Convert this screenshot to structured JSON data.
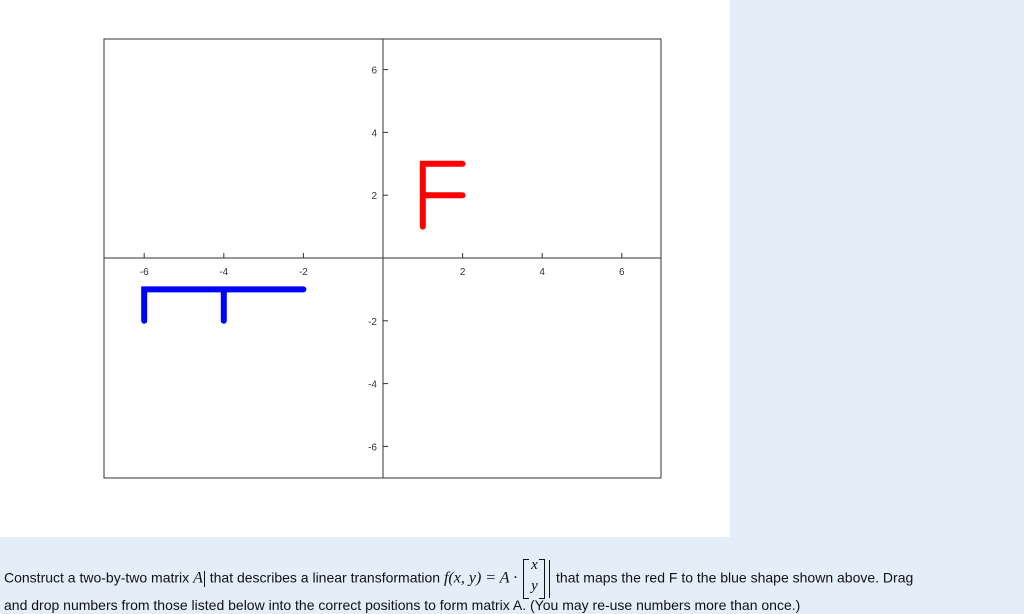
{
  "chart_data": {
    "type": "line",
    "xlim": [
      -7,
      7
    ],
    "ylim": [
      -7,
      7
    ],
    "x_ticks": [
      -6,
      -4,
      -2,
      2,
      4,
      6
    ],
    "y_ticks": [
      6,
      4,
      2,
      -2,
      -4,
      -6
    ],
    "grid": false,
    "series": [
      {
        "color": "#ff0000",
        "segments": [
          [
            [
              1,
              1
            ],
            [
              1,
              3
            ],
            [
              2,
              3
            ]
          ],
          [
            [
              1,
              2
            ],
            [
              2,
              2
            ]
          ]
        ]
      },
      {
        "color": "#0000ff",
        "segments": [
          [
            [
              -6,
              -2
            ],
            [
              -6,
              -1
            ],
            [
              -2,
              -1
            ]
          ],
          [
            [
              -4,
              -1
            ],
            [
              -4,
              -2
            ]
          ]
        ]
      }
    ]
  },
  "question": {
    "line1_a": "Construct a two-by-two matrix ",
    "matrix_var": "A",
    "line1_b": " that describes a linear transformation ",
    "formula": "f(x, y) = A ·",
    "vec_x": "x",
    "vec_y": "y",
    "line1_c": " that maps the red F to the blue shape shown above.  Drag",
    "line2": "and drop numbers from those listed below into the correct positions to form matrix A.  (You may re-use numbers more than once.)"
  }
}
